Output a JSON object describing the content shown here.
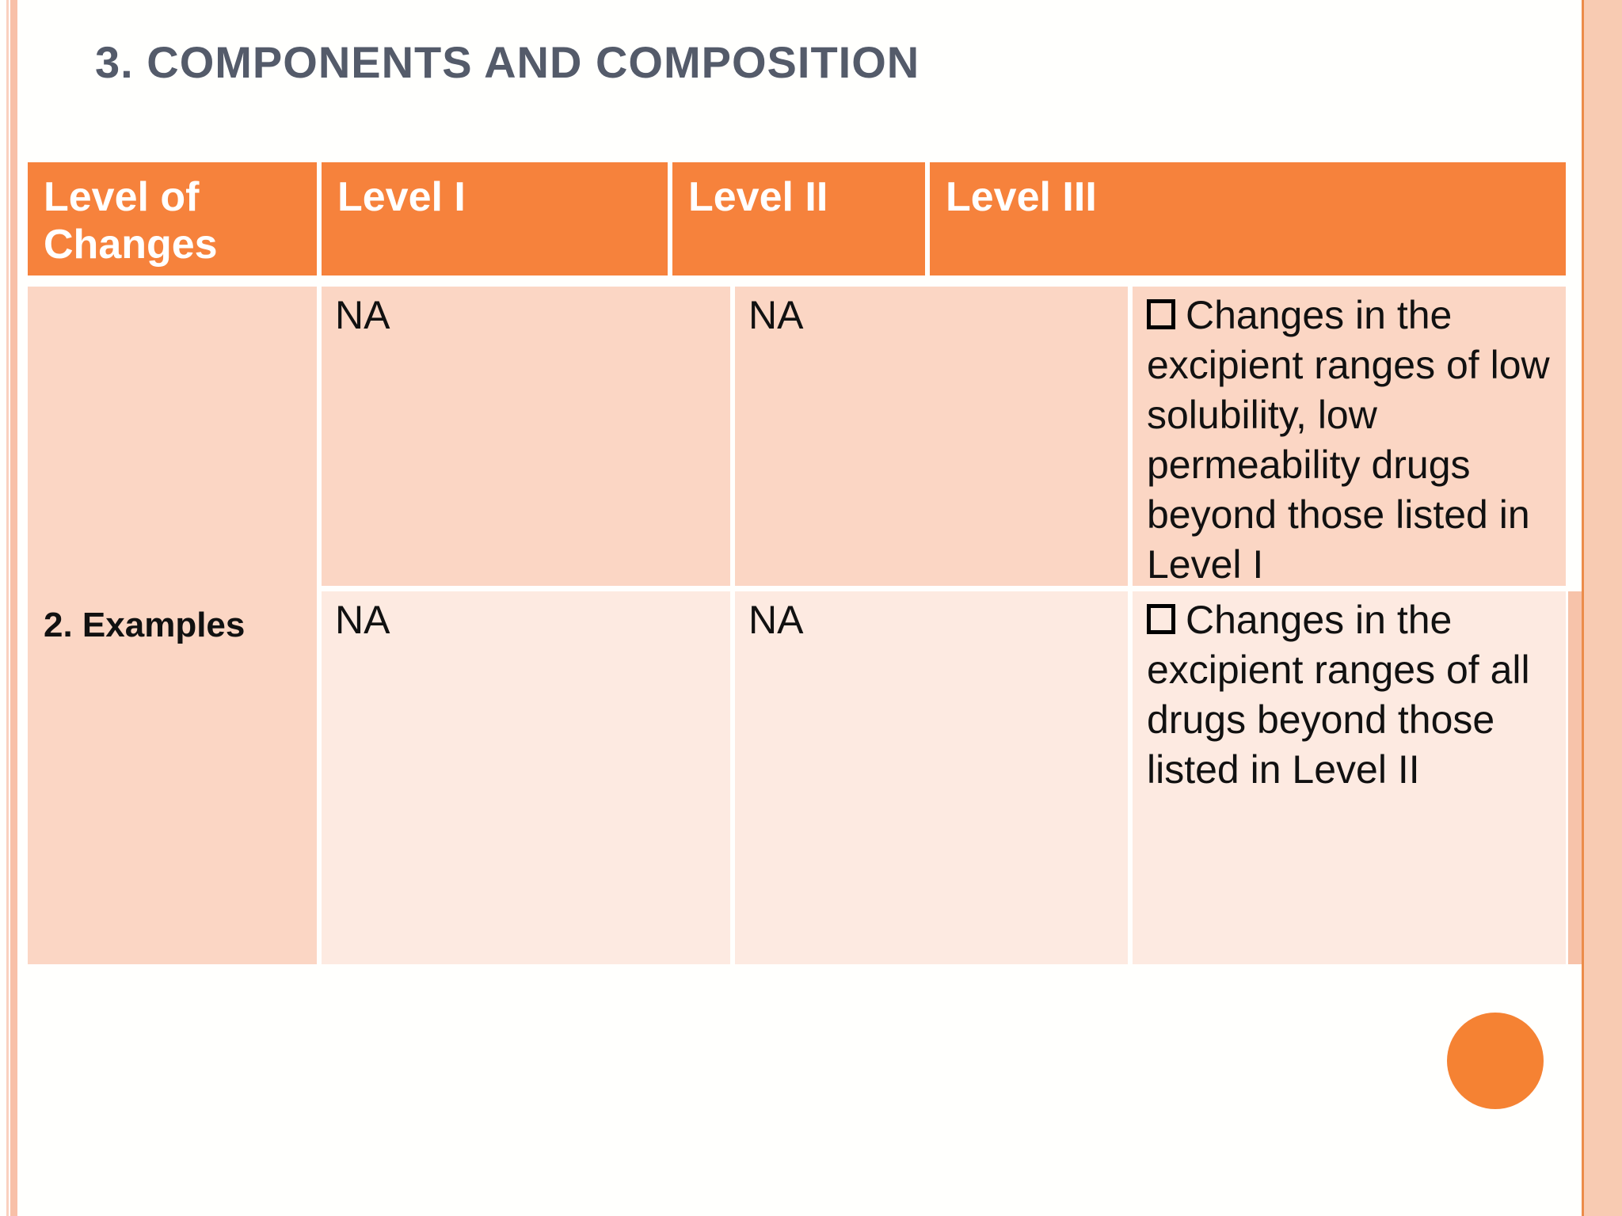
{
  "slide": {
    "title": "3. COMPONENTS AND COMPOSITION"
  },
  "table": {
    "headers": [
      "Level of Changes",
      "Level I",
      "Level II",
      "Level III"
    ],
    "row_label": "2. Examples",
    "rows": [
      {
        "level1": "NA",
        "level2": "NA",
        "level3": "Changes in the\nexcipient ranges of low\nsolubility, low\npermeability drugs\nbeyond those listed in\nLevel I"
      },
      {
        "level1": "NA",
        "level2": "NA",
        "level3": "Changes in the\nexcipient ranges of all\ndrugs beyond those\nlisted in Level II"
      }
    ],
    "bullet_icon": "checkbox-square"
  },
  "colors": {
    "header_bg": "#f6823c",
    "row1_bg": "#fbd6c4",
    "row2_bg": "#fdeae1",
    "accent_circle": "#f58233",
    "title_text": "#545b6a"
  }
}
